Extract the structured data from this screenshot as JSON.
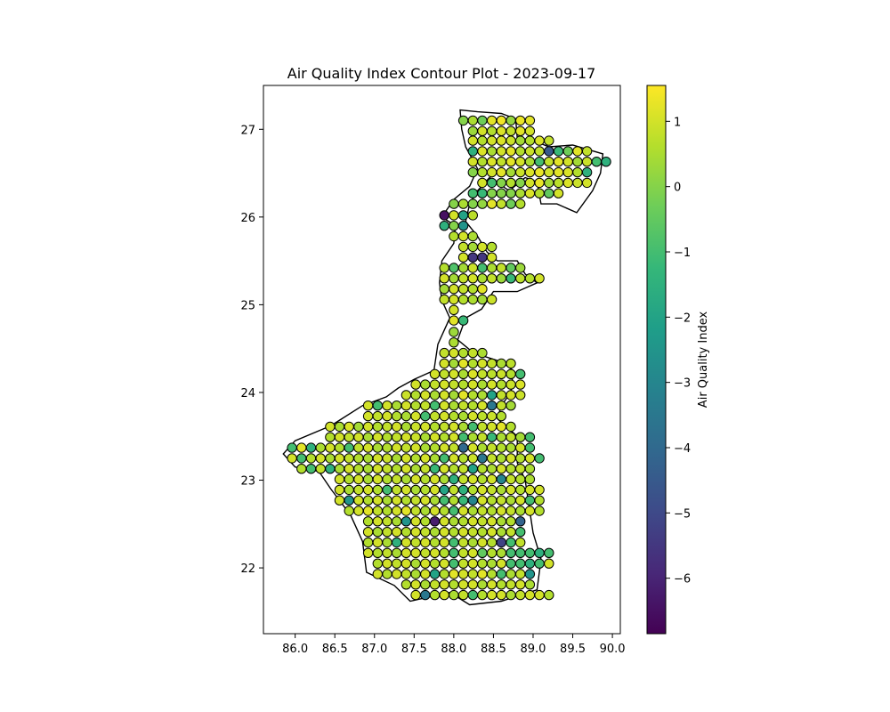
{
  "chart_data": {
    "type": "scatter",
    "title": "Air Quality Index Contour Plot - 2023-09-17",
    "xlabel": "",
    "ylabel": "",
    "xlim": [
      85.6,
      90.1
    ],
    "ylim": [
      21.25,
      27.5
    ],
    "xticks": [
      "86.0",
      "86.5",
      "87.0",
      "87.5",
      "88.0",
      "88.5",
      "89.0",
      "89.5",
      "90.0"
    ],
    "yticks": [
      "22",
      "23",
      "24",
      "25",
      "26",
      "27"
    ],
    "grid": false,
    "colormap": "viridis",
    "colorbar": {
      "label": "Air Quality Index",
      "range": [
        -6.85,
        1.55
      ],
      "ticks": [
        "1",
        "0",
        "−1",
        "−2",
        "−3",
        "−4",
        "−5",
        "−6"
      ]
    },
    "marker_edge_color": "#000000",
    "points_note_value_estimate": "grid points with AQI values read from color",
    "rows": [
      {
        "y": 27.1,
        "x0": 88.12,
        "v": [
          0,
          0.5,
          -0.3,
          1.2,
          1.4,
          0.2,
          1.3,
          1.2
        ]
      },
      {
        "y": 26.98,
        "x0": 88.24,
        "v": [
          0.3,
          1.0,
          0.6,
          1.1,
          0.8,
          1.2,
          1.0
        ]
      },
      {
        "y": 26.87,
        "x0": 88.24,
        "v": [
          1.0,
          0.6,
          1.0,
          1.1,
          0.9,
          0.4,
          0.6,
          1.1,
          0.8
        ]
      },
      {
        "y": 26.75,
        "x0": 88.24,
        "v": [
          -1.5,
          1.1,
          0.5,
          1.0,
          1.2,
          0.6,
          0.9,
          0.8,
          -4.5,
          -1.2,
          -0.3,
          1.2,
          0.8
        ]
      },
      {
        "y": 26.63,
        "x0": 88.24,
        "v": [
          1.0,
          0.6,
          1.1,
          0.8,
          1.2,
          1.0,
          0.5,
          -1.0,
          0.8,
          1.2,
          1.0,
          0.4,
          0.9,
          -1.0,
          -1.5
        ]
      },
      {
        "y": 26.51,
        "x0": 88.24,
        "v": [
          0,
          0.6,
          1.0,
          1.2,
          0.4,
          0.9,
          1.1,
          1.3,
          1.0,
          1.2,
          1.1,
          0.6,
          -1.5
        ]
      },
      {
        "y": 26.39,
        "x0": 88.36,
        "v": [
          1.0,
          -1.0,
          0,
          0.6,
          0,
          1.0,
          1.3,
          0.4,
          0.7,
          1.1,
          0.9,
          1.0
        ]
      },
      {
        "y": 26.27,
        "x0": 88.24,
        "v": [
          -1.0,
          -1.2,
          0,
          0,
          0,
          0.5,
          1.1,
          0.6,
          -0.5,
          1.0
        ]
      },
      {
        "y": 26.15,
        "x0": 88.0,
        "v": [
          0,
          0.5,
          0,
          0.2,
          1.2,
          0.8,
          -0.3,
          0.6
        ]
      },
      {
        "y": 26.02,
        "x0": 87.88,
        "v": [
          -6.5,
          1.0,
          -2.0,
          0.7
        ]
      },
      {
        "y": 25.9,
        "x0": 87.88,
        "v": [
          -1.5,
          0,
          -2.5
        ]
      },
      {
        "y": 25.78,
        "x0": 88.0,
        "v": [
          0.6,
          1.0,
          0.5
        ]
      },
      {
        "y": 25.66,
        "x0": 88.12,
        "v": [
          0.8,
          0.4,
          1.0,
          0.6
        ]
      },
      {
        "y": 25.54,
        "x0": 88.12,
        "v": [
          1.0,
          -5.5,
          -5.5,
          1.0
        ]
      },
      {
        "y": 25.42,
        "x0": 87.88,
        "v": [
          0.6,
          -0.8,
          0.4,
          0.9,
          -1.0,
          0.5,
          0.8,
          -0.5,
          0.3
        ]
      },
      {
        "y": 25.3,
        "x0": 87.88,
        "v": [
          1.0,
          0.4,
          0.8,
          1.0,
          0.5,
          0.8,
          0.3,
          -1.2,
          0.7,
          0.6,
          1.0
        ]
      },
      {
        "y": 25.18,
        "x0": 87.88,
        "v": [
          0.4,
          1.0,
          0.8,
          0.6,
          1.2
        ]
      },
      {
        "y": 25.06,
        "x0": 87.88,
        "v": [
          0.8,
          1.0,
          0.6,
          0.5,
          0.4,
          0.9
        ]
      },
      {
        "y": 24.94,
        "x0": 88.0,
        "v": [
          1.0
        ]
      },
      {
        "y": 24.82,
        "x0": 88.0,
        "v": [
          1.2,
          -1.2
        ]
      },
      {
        "y": 24.69,
        "x0": 88.0,
        "v": [
          0.3
        ]
      },
      {
        "y": 24.57,
        "x0": 88.0,
        "v": [
          0.5
        ]
      },
      {
        "y": 24.45,
        "x0": 87.88,
        "v": [
          0.8,
          1.0,
          0.6,
          0.8,
          0.5
        ]
      },
      {
        "y": 24.33,
        "x0": 87.88,
        "v": [
          1.0,
          0.4,
          1.2,
          0.6,
          1.0,
          0.8,
          0.5,
          0.7
        ]
      },
      {
        "y": 24.21,
        "x0": 87.76,
        "v": [
          1.0,
          0.8,
          1.0,
          0.5,
          1.1,
          0.8,
          0.7,
          0.9,
          0.6,
          -1.0
        ]
      },
      {
        "y": 24.09,
        "x0": 87.52,
        "v": [
          1.0,
          0.5,
          0.8,
          1.0,
          0.8,
          0.6,
          1.0,
          0.5,
          1.0,
          0.6,
          0.9,
          1.1
        ]
      },
      {
        "y": 23.97,
        "x0": 87.4,
        "v": [
          0.9,
          0.6,
          1.0,
          0.5,
          1.0,
          0.4,
          1.2,
          0.6,
          0.5,
          -2.0,
          0.8,
          1.0,
          0.9
        ]
      },
      {
        "y": 23.85,
        "x0": 86.92,
        "v": [
          1.0,
          -1.0,
          1.0,
          0.5,
          1.0,
          0.6,
          0.8,
          -1.0,
          1.0,
          0.5,
          0.8,
          0.6,
          1.0,
          -3.5,
          0.8,
          0.4
        ]
      },
      {
        "y": 23.73,
        "x0": 86.92,
        "v": [
          1.0,
          0.8,
          1.0,
          0.6,
          0.5,
          1.0,
          -1.0,
          0.8,
          1.0,
          0.6,
          0.5,
          1.0,
          0.7,
          0.9,
          0.6
        ]
      },
      {
        "y": 23.61,
        "x0": 86.44,
        "v": [
          1.0,
          0.5,
          1.1,
          0.4,
          1.0,
          0.6,
          0.8,
          1.0,
          0.5,
          0.9,
          1.0,
          0.6,
          0.8,
          1.0,
          0.5,
          -1.0,
          0.8,
          1.0,
          1.2,
          0.6
        ]
      },
      {
        "y": 23.49,
        "x0": 86.44,
        "v": [
          0.6,
          1.0,
          0.8,
          1.0,
          0.5,
          1.0,
          0.6,
          0.8,
          1.0,
          0.9,
          0.5,
          1.0,
          0.6,
          1.0,
          -1.0,
          0.5,
          0.8,
          -1.2,
          0.5,
          0.8,
          0.4,
          -1.0
        ]
      },
      {
        "y": 23.37,
        "x0": 85.96,
        "v": [
          -1.0,
          1.2,
          -1.5,
          0.5,
          1.0,
          0.6,
          -1.0,
          0.8,
          1.0,
          0.5,
          0.6,
          1.0,
          0.8,
          1.0,
          0.5,
          0.6,
          1.0,
          0.8,
          -4.0,
          1.0,
          0.5,
          0.8,
          0.6,
          0.5,
          1.0,
          -1.0
        ]
      },
      {
        "y": 23.25,
        "x0": 85.96,
        "v": [
          1.0,
          -1.0,
          0.6,
          1.0,
          0.5,
          1.0,
          0.8,
          0.6,
          0.5,
          1.0,
          0.9,
          0.5,
          1.0,
          0.6,
          1.0,
          0.5,
          -1.0,
          1.0,
          0.6,
          0.9,
          -3.5,
          0.8,
          0.5,
          1.0,
          0.6,
          1.0,
          -1.0
        ]
      },
      {
        "y": 23.13,
        "x0": 86.08,
        "v": [
          0.6,
          -1.0,
          0.8,
          -1.5,
          0.5,
          1.0,
          0.6,
          0.5,
          1.0,
          0.8,
          0.6,
          1.0,
          0.5,
          0.8,
          -1.2,
          1.0,
          0.6,
          0.8,
          -2.0,
          0.6,
          0.5,
          1.0,
          0.6,
          0.8,
          0.5
        ]
      },
      {
        "y": 23.01,
        "x0": 86.56,
        "v": [
          1.0,
          0.6,
          1.0,
          0.5,
          1.0,
          0.6,
          0.8,
          0.5,
          1.0,
          0.6,
          1.0,
          0.5,
          -1.5,
          0.8,
          1.0,
          0.6,
          1.0,
          -3.0,
          0.8,
          0.6,
          0.5
        ]
      },
      {
        "y": 22.89,
        "x0": 86.56,
        "v": [
          1.0,
          0.5,
          0.8,
          1.0,
          0.6,
          -1.0,
          0.8,
          1.0,
          0.5,
          0.6,
          1.0,
          -2.0,
          0.8,
          -1.5,
          0.6,
          1.0,
          0.8,
          0.5,
          1.0,
          0.6,
          1.0,
          1.0
        ]
      },
      {
        "y": 22.77,
        "x0": 86.56,
        "v": [
          1.0,
          -2.5,
          1.0,
          0.6,
          1.0,
          0.5,
          1.0,
          0.6,
          0.8,
          1.0,
          0.5,
          -1.0,
          0.6,
          -1.2,
          -3.0,
          1.0,
          0.6,
          0.8,
          0.5,
          1.0,
          -1.0,
          0.6
        ]
      },
      {
        "y": 22.65,
        "x0": 86.68,
        "v": [
          0.6,
          1.0,
          1.2,
          0.8,
          0.6,
          1.0,
          1.2,
          0.8,
          0.5,
          1.0,
          0.6,
          -1.0,
          1.0,
          0.5,
          0.8,
          0.6,
          1.0,
          0.8,
          0.5,
          1.0,
          0.6
        ]
      },
      {
        "y": 22.53,
        "x0": 86.92,
        "v": [
          0.6,
          1.0,
          0.8,
          0.5,
          -2.5,
          1.0,
          0.6,
          -6.2,
          1.0,
          0.5,
          0.6,
          1.0,
          0.8,
          1.0,
          0.5,
          0.6,
          -4.2
        ]
      },
      {
        "y": 22.41,
        "x0": 86.92,
        "v": [
          1.0,
          0.5,
          0.8,
          1.0,
          0.6,
          1.0,
          0.8,
          0.5,
          1.0,
          0.6,
          1.0,
          0.8,
          0.6,
          1.0,
          0.5,
          0.8,
          -1.0
        ]
      },
      {
        "y": 22.29,
        "x0": 86.92,
        "v": [
          0.6,
          1.0,
          0.5,
          -1.5,
          1.0,
          0.8,
          1.0,
          0.6,
          1.0,
          -1.0,
          0.8,
          0.5,
          1.0,
          0.6,
          -5.2,
          -1.0,
          0.8
        ]
      },
      {
        "y": 22.17,
        "x0": 86.92,
        "v": [
          1.0,
          0.6,
          0.8,
          0.5,
          1.0,
          1.0,
          0.8,
          1.0,
          0.6,
          -1.0,
          0.8,
          1.0,
          -0.5,
          0.6,
          0.5,
          -1.0,
          -1.0,
          -1.0,
          -1.5,
          -1.0
        ]
      },
      {
        "y": 22.05,
        "x0": 87.04,
        "v": [
          0.6,
          1.0,
          0.8,
          1.0,
          0.5,
          1.0,
          0.6,
          1.0,
          -1.0,
          0.8,
          1.0,
          0.6,
          0.5,
          1.0,
          -1.0,
          -1.0,
          -1.5,
          -1.0,
          1.0
        ]
      },
      {
        "y": 21.93,
        "x0": 87.04,
        "v": [
          1.0,
          0.6,
          1.0,
          0.8,
          0.5,
          1.0,
          -2.0,
          0.6,
          1.2,
          1.0,
          0.8,
          1.2,
          0.6,
          -1.0,
          0.5,
          0.8,
          -2.5
        ]
      },
      {
        "y": 21.81,
        "x0": 87.4,
        "v": [
          0.6,
          1.0,
          0.5,
          0.8,
          1.0,
          0.6,
          1.0,
          1.0,
          0.5,
          1.0,
          0.6,
          0.8,
          1.0,
          0.5
        ]
      },
      {
        "y": 21.69,
        "x0": 87.52,
        "v": [
          1.0,
          -3.5,
          0.6,
          1.0,
          0.5,
          0.8,
          -1.0,
          0.6,
          1.0,
          1.0,
          0.5,
          0.8,
          1.0,
          1.0,
          0.6
        ]
      }
    ],
    "point_spacing": 0.12
  }
}
